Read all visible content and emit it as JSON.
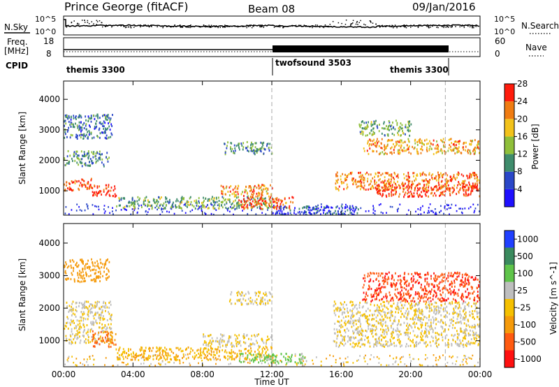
{
  "header": {
    "station": "Prince George (fitACF)",
    "beam": "Beam 08",
    "date": "09/Jan/2016"
  },
  "left_labels": {
    "nsky": "N.Sky",
    "freq_top": "Freq.",
    "freq_units": "[MHz]",
    "cpid": "CPID"
  },
  "right_labels": {
    "nsearch": "N.Search",
    "nave": "Nave"
  },
  "noise_panel": {
    "left_ticks": [
      "10^5",
      "10^0"
    ],
    "right_ticks": [
      "10^5",
      "10^0"
    ]
  },
  "freq_panel": {
    "left_ticks": [
      "18",
      "8"
    ],
    "right_ticks": [
      "60",
      "0"
    ]
  },
  "cpid_segments": [
    {
      "label": "themis 3300"
    },
    {
      "label": "twofsound 3503"
    },
    {
      "label": "themis 3300"
    }
  ],
  "chart_data": [
    {
      "type": "heatmap",
      "name": "power",
      "ylabel": "Slant Range [km]",
      "y_ticks": [
        "1000",
        "2000",
        "3000",
        "4000"
      ],
      "ylim": [
        200,
        4600
      ],
      "xlim": [
        0,
        24
      ],
      "colorbar_label": "Power [dB]",
      "colorbar_ticks": [
        "4",
        "8",
        "12",
        "16",
        "20",
        "24",
        "28"
      ],
      "colorbar_colors": [
        "#1f10ff",
        "#2a47c8",
        "#3f8c6c",
        "#8fbf3a",
        "#f2c21b",
        "#f07c12",
        "#ff1c0c"
      ],
      "regions": [
        {
          "t0": 0.0,
          "t1": 2.8,
          "r0": 2700,
          "r1": 3500,
          "value": 10
        },
        {
          "t0": 0.0,
          "t1": 2.6,
          "r0": 1800,
          "r1": 2300,
          "value": 12
        },
        {
          "t0": 0.0,
          "t1": 1.6,
          "r0": 1000,
          "r1": 1400,
          "value": 26
        },
        {
          "t0": 1.6,
          "t1": 3.0,
          "r0": 800,
          "r1": 1200,
          "value": 28
        },
        {
          "t0": 3.0,
          "t1": 12.0,
          "r0": 400,
          "r1": 800,
          "value": 14
        },
        {
          "t0": 9.0,
          "t1": 12.0,
          "r0": 800,
          "r1": 1200,
          "value": 22
        },
        {
          "t0": 9.2,
          "t1": 12.0,
          "r0": 2200,
          "r1": 2600,
          "value": 12
        },
        {
          "t0": 10.0,
          "t1": 13.2,
          "r0": 400,
          "r1": 800,
          "value": 26
        },
        {
          "t0": 12.0,
          "t1": 17.0,
          "r0": 200,
          "r1": 500,
          "value": 8
        },
        {
          "t0": 15.6,
          "t1": 24.0,
          "r0": 1000,
          "r1": 1600,
          "value": 24
        },
        {
          "t0": 18.0,
          "t1": 24.0,
          "r0": 800,
          "r1": 1200,
          "value": 28
        },
        {
          "t0": 17.2,
          "t1": 24.0,
          "r0": 2200,
          "r1": 2700,
          "value": 22
        },
        {
          "t0": 17.0,
          "t1": 20.0,
          "r0": 2800,
          "r1": 3300,
          "value": 14
        }
      ]
    },
    {
      "type": "heatmap",
      "name": "velocity",
      "ylabel": "Slant Range [km]",
      "y_ticks": [
        "1000",
        "2000",
        "3000",
        "4000"
      ],
      "ylim": [
        200,
        4600
      ],
      "xlim": [
        0,
        24
      ],
      "xlabel": "Time UT",
      "x_ticks": [
        "00:00",
        "04:00",
        "08:00",
        "12:00",
        "16:00",
        "20:00",
        "00:00"
      ],
      "colorbar_label": "Velocity [m s^-1]",
      "colorbar_ticks": [
        "1000",
        "500",
        "100",
        "25",
        "-25",
        "-100",
        "-500",
        "-1000"
      ],
      "colorbar_colors": [
        "#2040ff",
        "#3a8a5e",
        "#5fc44a",
        "#bebebe",
        "#f5c000",
        "#f59a0a",
        "#ff5a10",
        "#ff1010"
      ],
      "regions": [
        {
          "t0": 0.0,
          "t1": 2.6,
          "r0": 2800,
          "r1": 3500,
          "value": -100
        },
        {
          "t0": 0.0,
          "t1": 2.8,
          "r0": 900,
          "r1": 2200,
          "value": 0
        },
        {
          "t0": 1.6,
          "t1": 3.0,
          "r0": 800,
          "r1": 1300,
          "value": -300
        },
        {
          "t0": 3.0,
          "t1": 12.0,
          "r0": 400,
          "r1": 800,
          "value": -60
        },
        {
          "t0": 8.0,
          "t1": 12.0,
          "r0": 800,
          "r1": 1200,
          "value": 0
        },
        {
          "t0": 9.5,
          "t1": 12.0,
          "r0": 2100,
          "r1": 2500,
          "value": 0
        },
        {
          "t0": 10.0,
          "t1": 14.0,
          "r0": 300,
          "r1": 600,
          "value": 80
        },
        {
          "t0": 15.5,
          "t1": 24.0,
          "r0": 800,
          "r1": 2200,
          "value": 0
        },
        {
          "t0": 17.2,
          "t1": 24.0,
          "r0": 2200,
          "r1": 3100,
          "value": -700
        }
      ]
    }
  ]
}
